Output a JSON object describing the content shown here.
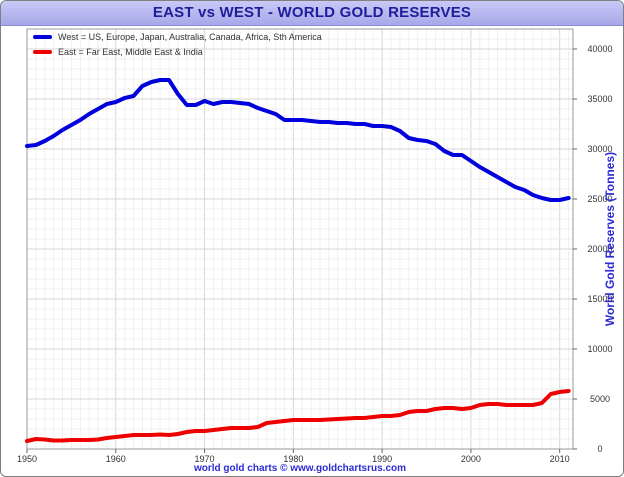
{
  "chart_data": {
    "type": "line",
    "title": "EAST vs WEST - WORLD GOLD RESERVES",
    "ylabel": "World Gold Reserves (Tonnes)",
    "xlabel": "",
    "footer": "world gold charts © www.goldchartsrus.com",
    "xlim": [
      1950,
      2011.5
    ],
    "ylim": [
      0,
      42000
    ],
    "x_ticks": [
      1950,
      1960,
      1970,
      1980,
      1990,
      2000,
      2010
    ],
    "y_ticks": [
      0,
      5000,
      10000,
      15000,
      20000,
      25000,
      30000,
      35000,
      40000
    ],
    "grid": true,
    "legend_position": "top-left",
    "series": [
      {
        "name": "West = US, Europe, Japan, Australia, Canada, Africa, Sth America",
        "color": "#0000dd",
        "x": [
          1950,
          1951,
          1952,
          1953,
          1954,
          1955,
          1956,
          1957,
          1958,
          1959,
          1960,
          1961,
          1962,
          1963,
          1964,
          1965,
          1966,
          1967,
          1968,
          1969,
          1970,
          1971,
          1972,
          1973,
          1974,
          1975,
          1976,
          1977,
          1978,
          1979,
          1980,
          1981,
          1982,
          1983,
          1984,
          1985,
          1986,
          1987,
          1988,
          1989,
          1990,
          1991,
          1992,
          1993,
          1994,
          1995,
          1996,
          1997,
          1998,
          1999,
          2000,
          2001,
          2002,
          2003,
          2004,
          2005,
          2006,
          2007,
          2008,
          2009,
          2010,
          2011
        ],
        "y": [
          30300,
          30400,
          30800,
          31300,
          31900,
          32400,
          32900,
          33500,
          34000,
          34500,
          34700,
          35100,
          35300,
          36300,
          36700,
          36900,
          36900,
          35500,
          34400,
          34400,
          34800,
          34500,
          34700,
          34700,
          34600,
          34500,
          34100,
          33800,
          33500,
          32900,
          32900,
          32900,
          32800,
          32700,
          32700,
          32600,
          32600,
          32500,
          32500,
          32300,
          32300,
          32200,
          31800,
          31100,
          30900,
          30800,
          30500,
          29800,
          29400,
          29400,
          28800,
          28200,
          27700,
          27200,
          26700,
          26200,
          25900,
          25400,
          25100,
          24900,
          24900,
          25100
        ]
      },
      {
        "name": "East = Far East, Middle East & India",
        "color": "#ee0000",
        "x": [
          1950,
          1951,
          1952,
          1953,
          1954,
          1955,
          1956,
          1957,
          1958,
          1959,
          1960,
          1961,
          1962,
          1963,
          1964,
          1965,
          1966,
          1967,
          1968,
          1969,
          1970,
          1971,
          1972,
          1973,
          1974,
          1975,
          1976,
          1977,
          1978,
          1979,
          1980,
          1981,
          1982,
          1983,
          1984,
          1985,
          1986,
          1987,
          1988,
          1989,
          1990,
          1991,
          1992,
          1993,
          1994,
          1995,
          1996,
          1997,
          1998,
          1999,
          2000,
          2001,
          2002,
          2003,
          2004,
          2005,
          2006,
          2007,
          2008,
          2009,
          2010,
          2011
        ],
        "y": [
          800,
          1000,
          950,
          850,
          850,
          900,
          900,
          900,
          950,
          1100,
          1200,
          1300,
          1400,
          1400,
          1400,
          1450,
          1400,
          1500,
          1700,
          1800,
          1800,
          1900,
          2000,
          2100,
          2100,
          2100,
          2200,
          2600,
          2700,
          2800,
          2900,
          2900,
          2900,
          2900,
          2950,
          3000,
          3050,
          3100,
          3100,
          3200,
          3300,
          3300,
          3400,
          3700,
          3800,
          3800,
          4000,
          4100,
          4100,
          4000,
          4100,
          4400,
          4500,
          4500,
          4400,
          4400,
          4400,
          4400,
          4600,
          5500,
          5700,
          5800
        ]
      }
    ]
  }
}
